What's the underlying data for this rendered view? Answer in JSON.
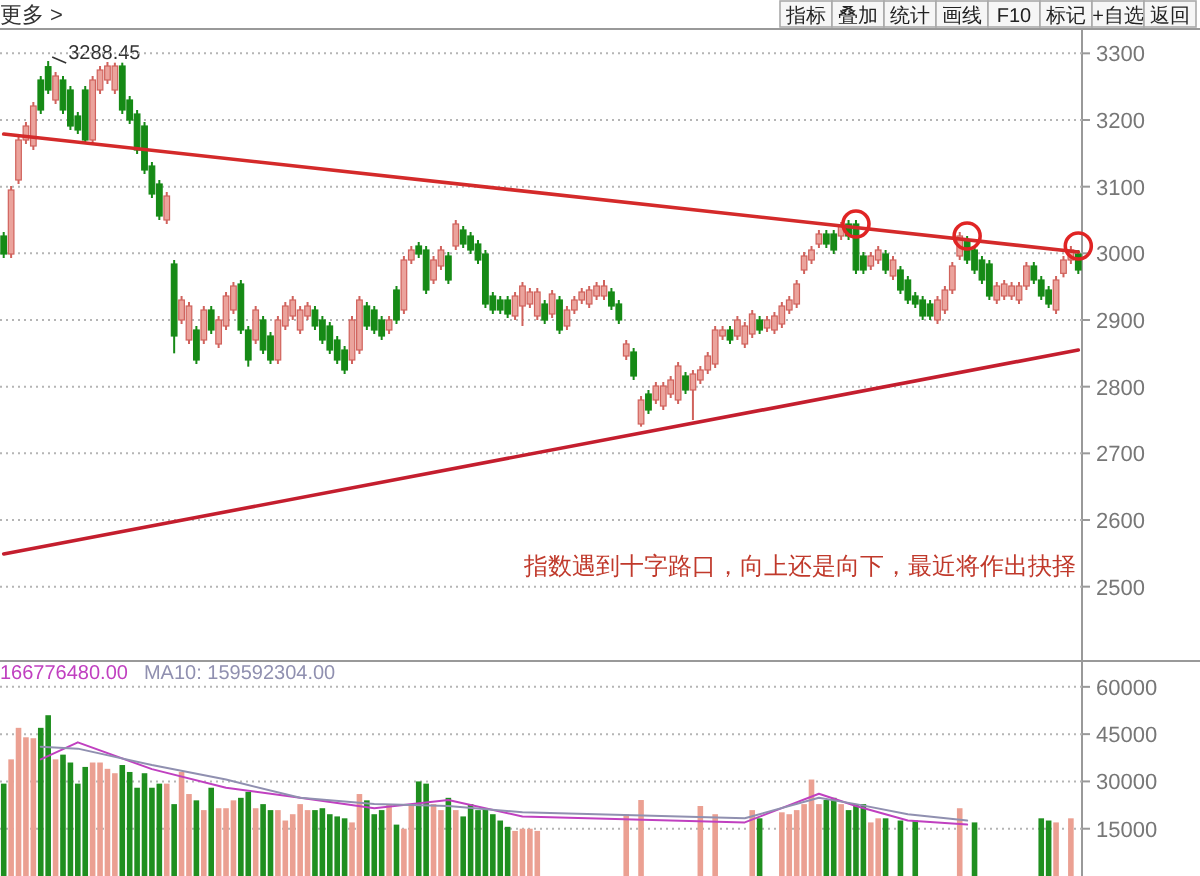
{
  "chart_data": [
    {
      "type": "candlestick",
      "categories": [
        null,
        null,
        null,
        null,
        null,
        null,
        null,
        null,
        null,
        null,
        null,
        null,
        null,
        null,
        null,
        null,
        null,
        null,
        null,
        null,
        null,
        null,
        null,
        null,
        null,
        null,
        null,
        null,
        null,
        null,
        null,
        null,
        null,
        null,
        null,
        null,
        null,
        null,
        null,
        null,
        null,
        null,
        null,
        null,
        null,
        null,
        null,
        null,
        null,
        null,
        null,
        null,
        null,
        null,
        null,
        null,
        null,
        null,
        null,
        null,
        null,
        null,
        null,
        null,
        null,
        null,
        null,
        null,
        null,
        null,
        null,
        null,
        null,
        null,
        null,
        null,
        null,
        null,
        null,
        null,
        null,
        null,
        null,
        null,
        null,
        null,
        null,
        null,
        null,
        null,
        null,
        null,
        null,
        null,
        null,
        null,
        null,
        null,
        null,
        null,
        null,
        null,
        null,
        null,
        null,
        null,
        null,
        null,
        null,
        null,
        null,
        null,
        null,
        null,
        null,
        null,
        null,
        null,
        null,
        null,
        null,
        null,
        null,
        null,
        null,
        null,
        null,
        null,
        null,
        null,
        null,
        null,
        null,
        null,
        null,
        null,
        null,
        null,
        null,
        null,
        null,
        null,
        null,
        null,
        null,
        null
      ],
      "ohlc": [
        [
          3026,
          3032,
          2993,
          2999
        ],
        [
          2999,
          3101,
          2993,
          3095
        ],
        [
          3110,
          3176,
          3104,
          3170
        ],
        [
          3170,
          3197,
          3164,
          3191
        ],
        [
          3161,
          3227,
          3155,
          3221
        ],
        [
          3260,
          3266,
          3209,
          3215
        ],
        [
          3280,
          3288.45,
          3239,
          3245
        ],
        [
          3230,
          3272,
          3224,
          3266
        ],
        [
          3260,
          3266,
          3209,
          3215
        ],
        [
          3245,
          3251,
          3185,
          3191
        ],
        [
          3206,
          3212,
          3179,
          3185
        ],
        [
          3245,
          3251,
          3164,
          3170
        ],
        [
          3170,
          3266,
          3164,
          3260
        ],
        [
          3245,
          3281,
          3239,
          3275
        ],
        [
          3260,
          3287,
          3254,
          3281
        ],
        [
          3245,
          3286,
          3239,
          3281
        ],
        [
          3281,
          3286,
          3209,
          3215
        ],
        [
          3230,
          3236,
          3194,
          3200
        ],
        [
          3209,
          3215,
          3149,
          3155
        ],
        [
          3191,
          3197,
          3119,
          3125
        ],
        [
          3131,
          3137,
          3083,
          3089
        ],
        [
          3104,
          3110,
          3050,
          3056
        ],
        [
          3050,
          3092,
          3044,
          3086
        ],
        [
          2984,
          2990,
          2850,
          2876
        ],
        [
          2900,
          2936,
          2894,
          2930
        ],
        [
          2870,
          2927,
          2864,
          2921
        ],
        [
          2885,
          2891,
          2834,
          2840
        ],
        [
          2870,
          2921,
          2864,
          2915
        ],
        [
          2915,
          2921,
          2879,
          2885
        ],
        [
          2864,
          2906,
          2858,
          2900
        ],
        [
          2891,
          2942,
          2885,
          2936
        ],
        [
          2915,
          2957,
          2909,
          2951
        ],
        [
          2954,
          2960,
          2879,
          2885
        ],
        [
          2885,
          2891,
          2830,
          2840
        ],
        [
          2870,
          2921,
          2864,
          2915
        ],
        [
          2900,
          2906,
          2849,
          2855
        ],
        [
          2876,
          2882,
          2834,
          2840
        ],
        [
          2840,
          2906,
          2834,
          2900
        ],
        [
          2891,
          2927,
          2885,
          2921
        ],
        [
          2906,
          2936,
          2900,
          2930
        ],
        [
          2885,
          2921,
          2879,
          2915
        ],
        [
          2906,
          2927,
          2900,
          2921
        ],
        [
          2915,
          2921,
          2885,
          2891
        ],
        [
          2900,
          2906,
          2864,
          2870
        ],
        [
          2891,
          2897,
          2849,
          2855
        ],
        [
          2870,
          2876,
          2834,
          2840
        ],
        [
          2855,
          2861,
          2819,
          2825
        ],
        [
          2840,
          2906,
          2834,
          2900
        ],
        [
          2855,
          2936,
          2849,
          2930
        ],
        [
          2921,
          2927,
          2885,
          2891
        ],
        [
          2915,
          2921,
          2879,
          2885
        ],
        [
          2900,
          2906,
          2870,
          2876
        ],
        [
          2885,
          2906,
          2879,
          2900
        ],
        [
          2945,
          2951,
          2894,
          2900
        ],
        [
          2915,
          2996,
          2909,
          2990
        ],
        [
          2990,
          3011,
          2984,
          3005
        ],
        [
          3011,
          3017,
          2993,
          2999
        ],
        [
          3005,
          3011,
          2939,
          2945
        ],
        [
          2960,
          2996,
          2954,
          2990
        ],
        [
          2981,
          3011,
          2975,
          3005
        ],
        [
          2996,
          3002,
          2954,
          2960
        ],
        [
          3011,
          3050,
          3005,
          3044
        ],
        [
          3035,
          3041,
          3008,
          3014
        ],
        [
          3026,
          3032,
          2999,
          3005
        ],
        [
          3014,
          3020,
          2984,
          2990
        ],
        [
          2999,
          3005,
          2918,
          2924
        ],
        [
          2936,
          2942,
          2909,
          2915
        ],
        [
          2930,
          2936,
          2909,
          2915
        ],
        [
          2930,
          2936,
          2903,
          2909
        ],
        [
          2906,
          2942,
          2900,
          2936
        ],
        [
          2921,
          2957,
          2891,
          2951
        ],
        [
          2924,
          2948,
          2918,
          2942
        ],
        [
          2906,
          2948,
          2900,
          2942
        ],
        [
          2924,
          2930,
          2894,
          2900
        ],
        [
          2909,
          2945,
          2903,
          2939
        ],
        [
          2930,
          2936,
          2879,
          2885
        ],
        [
          2891,
          2921,
          2885,
          2915
        ],
        [
          2915,
          2936,
          2909,
          2930
        ],
        [
          2930,
          2948,
          2924,
          2942
        ],
        [
          2924,
          2951,
          2918,
          2945
        ],
        [
          2936,
          2957,
          2930,
          2951
        ],
        [
          2936,
          2960,
          2930,
          2951
        ],
        [
          2942,
          2948,
          2915,
          2921
        ],
        [
          2924,
          2930,
          2894,
          2900
        ],
        [
          2846,
          2870,
          2840,
          2864
        ],
        [
          2852,
          2858,
          2810,
          2816
        ],
        [
          2744,
          2786,
          2740,
          2780
        ],
        [
          2789,
          2795,
          2759,
          2765
        ],
        [
          2780,
          2807,
          2774,
          2801
        ],
        [
          2771,
          2807,
          2765,
          2801
        ],
        [
          2789,
          2816,
          2783,
          2810
        ],
        [
          2780,
          2837,
          2774,
          2831
        ],
        [
          2816,
          2822,
          2789,
          2795
        ],
        [
          2795,
          2825,
          2750,
          2819
        ],
        [
          2810,
          2831,
          2804,
          2825
        ],
        [
          2825,
          2852,
          2819,
          2846
        ],
        [
          2834,
          2891,
          2828,
          2885
        ],
        [
          2876,
          2891,
          2870,
          2885
        ],
        [
          2885,
          2891,
          2864,
          2870
        ],
        [
          2876,
          2906,
          2870,
          2900
        ],
        [
          2864,
          2897,
          2858,
          2891
        ],
        [
          2879,
          2915,
          2873,
          2909
        ],
        [
          2900,
          2906,
          2879,
          2885
        ],
        [
          2888,
          2906,
          2882,
          2900
        ],
        [
          2885,
          2912,
          2879,
          2906
        ],
        [
          2894,
          2927,
          2888,
          2921
        ],
        [
          2915,
          2936,
          2909,
          2930
        ],
        [
          2924,
          2960,
          2918,
          2954
        ],
        [
          2975,
          3002,
          2969,
          2996
        ],
        [
          2990,
          3011,
          2984,
          3005
        ],
        [
          3014,
          3035,
          3008,
          3029
        ],
        [
          3029,
          3035,
          3008,
          3014
        ],
        [
          3029,
          3035,
          2999,
          3005
        ],
        [
          3026,
          3047,
          3020,
          3041
        ],
        [
          3044,
          3050,
          3020,
          3026
        ],
        [
          3044,
          3050,
          2969,
          2975
        ],
        [
          2996,
          3002,
          2969,
          2975
        ],
        [
          2981,
          3002,
          2975,
          2996
        ],
        [
          2990,
          3011,
          2984,
          3005
        ],
        [
          2999,
          3005,
          2969,
          2975
        ],
        [
          2966,
          2996,
          2960,
          2990
        ],
        [
          2975,
          2981,
          2939,
          2945
        ],
        [
          2960,
          2966,
          2924,
          2930
        ],
        [
          2936,
          2942,
          2918,
          2924
        ],
        [
          2930,
          2936,
          2900,
          2906
        ],
        [
          2924,
          2930,
          2900,
          2906
        ],
        [
          2900,
          2936,
          2894,
          2930
        ],
        [
          2915,
          2951,
          2909,
          2945
        ],
        [
          2945,
          2987,
          2939,
          2981
        ],
        [
          2996,
          3032,
          2990,
          3026
        ],
        [
          3020,
          3026,
          2984,
          2990
        ],
        [
          3005,
          3011,
          2969,
          2975
        ],
        [
          2990,
          2996,
          2954,
          2960
        ],
        [
          2984,
          2990,
          2930,
          2936
        ],
        [
          2930,
          2957,
          2924,
          2951
        ],
        [
          2936,
          2960,
          2930,
          2954
        ],
        [
          2936,
          2957,
          2930,
          2951
        ],
        [
          2930,
          2957,
          2924,
          2951
        ],
        [
          2951,
          2987,
          2945,
          2981
        ],
        [
          2981,
          2987,
          2954,
          2960
        ],
        [
          2960,
          2966,
          2930,
          2936
        ],
        [
          2945,
          2951,
          2918,
          2924
        ],
        [
          2915,
          2966,
          2909,
          2960
        ],
        [
          2970,
          2996,
          2964,
          2990
        ],
        [
          2990,
          3011,
          2984,
          3005
        ],
        [
          2999,
          3005,
          2969,
          2975
        ]
      ],
      "series": [
        {
          "type": "line",
          "color": "#d42a2a",
          "values": [
            3179,
            null,
            null,
            null,
            null,
            null,
            null,
            null,
            null,
            null,
            null,
            null,
            null,
            null,
            null,
            null,
            null,
            null,
            null,
            null,
            null,
            null,
            null,
            null,
            null,
            null,
            null,
            null,
            null,
            null,
            null,
            null,
            null,
            null,
            null,
            null,
            null,
            null,
            null,
            null,
            null,
            null,
            null,
            null,
            null,
            null,
            null,
            null,
            null,
            null,
            null,
            null,
            null,
            null,
            null,
            null,
            null,
            null,
            null,
            null,
            null,
            null,
            null,
            null,
            null,
            null,
            null,
            null,
            null,
            null,
            null,
            null,
            null,
            null,
            null,
            null,
            null,
            null,
            null,
            null,
            null,
            null,
            null,
            null,
            null,
            null,
            null,
            null,
            null,
            null,
            null,
            null,
            null,
            null,
            null,
            null,
            null,
            null,
            null,
            null,
            null,
            null,
            null,
            null,
            null,
            null,
            null,
            null,
            null,
            null,
            null,
            null,
            null,
            null,
            null,
            null,
            null,
            null,
            null,
            null,
            null,
            null,
            null,
            null,
            null,
            null,
            null,
            null,
            null,
            null,
            null,
            null,
            null,
            null,
            null,
            null,
            null,
            null,
            null,
            null,
            null,
            null,
            null,
            null,
            null,
            3002
          ]
        },
        {
          "type": "line",
          "color": "#c41e2e",
          "values": [
            2549,
            null,
            null,
            null,
            null,
            null,
            null,
            null,
            null,
            null,
            null,
            null,
            null,
            null,
            null,
            null,
            null,
            null,
            null,
            null,
            null,
            null,
            null,
            null,
            null,
            null,
            null,
            null,
            null,
            null,
            null,
            null,
            null,
            null,
            null,
            null,
            null,
            null,
            null,
            null,
            null,
            null,
            null,
            null,
            null,
            null,
            null,
            null,
            null,
            null,
            null,
            null,
            null,
            null,
            null,
            null,
            null,
            null,
            null,
            null,
            null,
            null,
            null,
            null,
            null,
            null,
            null,
            null,
            null,
            null,
            null,
            null,
            null,
            null,
            null,
            null,
            null,
            null,
            null,
            null,
            null,
            null,
            null,
            null,
            null,
            null,
            null,
            null,
            null,
            null,
            null,
            null,
            null,
            null,
            null,
            null,
            null,
            null,
            null,
            null,
            null,
            null,
            null,
            null,
            null,
            null,
            null,
            null,
            null,
            null,
            null,
            null,
            null,
            null,
            null,
            null,
            null,
            null,
            null,
            null,
            null,
            null,
            null,
            null,
            null,
            null,
            null,
            null,
            null,
            null,
            null,
            null,
            null,
            null,
            null,
            null,
            null,
            null,
            null,
            null,
            null,
            null,
            null,
            null,
            null,
            2855
          ]
        },
        {
          "type": "scatter",
          "marker": "circle",
          "color": "#e02424",
          "values": [
            null,
            null,
            null,
            null,
            null,
            null,
            null,
            null,
            null,
            null,
            null,
            null,
            null,
            null,
            null,
            null,
            null,
            null,
            null,
            null,
            null,
            null,
            null,
            null,
            null,
            null,
            null,
            null,
            null,
            null,
            null,
            null,
            null,
            null,
            null,
            null,
            null,
            null,
            null,
            null,
            null,
            null,
            null,
            null,
            null,
            null,
            null,
            null,
            null,
            null,
            null,
            null,
            null,
            null,
            null,
            null,
            null,
            null,
            null,
            null,
            null,
            null,
            null,
            null,
            null,
            null,
            null,
            null,
            null,
            null,
            null,
            null,
            null,
            null,
            null,
            null,
            null,
            null,
            null,
            null,
            null,
            null,
            null,
            null,
            null,
            null,
            null,
            null,
            null,
            null,
            null,
            null,
            null,
            null,
            null,
            null,
            null,
            null,
            null,
            null,
            null,
            null,
            null,
            null,
            null,
            null,
            null,
            null,
            null,
            null,
            null,
            null,
            null,
            null,
            null,
            3044,
            null,
            null,
            null,
            null,
            null,
            null,
            null,
            null,
            null,
            null,
            null,
            null,
            null,
            null,
            3026,
            null,
            null,
            null,
            null,
            null,
            null,
            null,
            null,
            null,
            null,
            null,
            null,
            null,
            null,
            3011
          ]
        }
      ],
      "ylim": [
        2390,
        3335
      ],
      "yticks": [
        2500,
        2600,
        2700,
        2800,
        2900,
        3000,
        3100,
        3200,
        3300
      ],
      "grid": "y",
      "annotations": [
        "更多 >",
        "指标",
        "叠加",
        "统计",
        "画线",
        "F10",
        "标记",
        "+自选",
        "返回",
        {
          "text": "3288.45",
          "y": 3288.45
        },
        "指数遇到十字路口，向上还是向下，最近将作出抉择"
      ]
    },
    {
      "type": "bar",
      "categories": [
        null,
        null,
        null,
        null,
        null,
        null,
        null,
        null,
        null,
        null,
        null,
        null,
        null,
        null,
        null,
        null,
        null,
        null,
        null,
        null,
        null,
        null,
        null,
        null,
        null,
        null,
        null,
        null,
        null,
        null,
        null,
        null,
        null,
        null,
        null,
        null,
        null,
        null,
        null,
        null,
        null,
        null,
        null,
        null,
        null,
        null,
        null,
        null,
        null,
        null,
        null,
        null,
        null,
        null,
        null,
        null,
        null,
        null,
        null,
        null,
        null,
        null,
        null,
        null,
        null,
        null,
        null,
        null,
        null,
        null,
        null,
        null,
        null,
        null,
        null,
        null,
        null,
        null,
        null,
        null,
        null,
        null,
        null,
        null,
        null,
        null,
        null,
        null,
        null,
        null,
        null,
        null,
        null,
        null,
        null,
        null,
        null,
        null,
        null,
        null,
        null,
        null,
        null,
        null,
        null,
        null,
        null,
        null,
        null,
        null,
        null,
        null,
        null,
        null,
        null,
        null,
        null,
        null,
        null,
        null,
        null,
        null,
        null,
        null,
        null,
        null,
        null,
        null,
        null,
        null,
        null,
        null,
        null,
        null,
        null,
        null,
        null,
        null,
        null,
        null,
        null,
        null,
        null,
        null,
        null,
        null
      ],
      "series": [
        {
          "colors": [
            "#1f8f1f",
            "#eba092",
            "#eba092",
            "#eba092",
            "#eba092",
            "#1f8f1f",
            "#1f8f1f",
            "#eba092",
            "#1f8f1f",
            "#1f8f1f",
            "#1f8f1f",
            "#1f8f1f",
            "#eba092",
            "#eba092",
            "#eba092",
            "#eba092",
            "#1f8f1f",
            "#1f8f1f",
            "#1f8f1f",
            "#1f8f1f",
            "#1f8f1f",
            "#1f8f1f",
            "#eba092",
            "#1f8f1f",
            "#eba092",
            "#eba092",
            "#1f8f1f",
            "#eba092",
            "#1f8f1f",
            "#eba092",
            "#eba092",
            "#eba092",
            "#1f8f1f",
            "#1f8f1f",
            "#eba092",
            "#1f8f1f",
            "#1f8f1f",
            "#eba092",
            "#eba092",
            "#eba092",
            "#eba092",
            "#eba092",
            "#1f8f1f",
            "#1f8f1f",
            "#1f8f1f",
            "#1f8f1f",
            "#1f8f1f",
            "#eba092",
            "#eba092",
            "#1f8f1f",
            "#1f8f1f",
            "#1f8f1f",
            "#eba092",
            "#1f8f1f",
            "#eba092",
            "#eba092",
            "#1f8f1f",
            "#1f8f1f",
            "#eba092",
            "#eba092",
            "#1f8f1f",
            "#eba092",
            "#1f8f1f",
            "#1f8f1f",
            "#1f8f1f",
            "#1f8f1f",
            "#1f8f1f",
            "#1f8f1f",
            "#1f8f1f",
            "#eba092",
            "#eba092",
            "#eba092",
            "#eba092",
            null,
            null,
            null,
            null,
            null,
            null,
            null,
            null,
            null,
            null,
            null,
            "#eba092",
            null,
            "#eba092",
            null,
            null,
            null,
            null,
            null,
            null,
            null,
            "#eba092",
            null,
            "#eba092",
            null,
            null,
            null,
            null,
            "#eba092",
            "#1f8f1f",
            null,
            null,
            "#eba092",
            "#eba092",
            "#eba092",
            "#eba092",
            "#eba092",
            "#eba092",
            "#1f8f1f",
            "#1f8f1f",
            "#eba092",
            "#1f8f1f",
            "#1f8f1f",
            "#1f8f1f",
            "#eba092",
            "#eba092",
            "#1f8f1f",
            null,
            "#1f8f1f",
            null,
            "#1f8f1f",
            null,
            null,
            null,
            null,
            null,
            "#eba092",
            null,
            "#1f8f1f",
            null,
            null,
            null,
            null,
            null,
            null,
            null,
            null,
            "#1f8f1f",
            "#1f8f1f",
            "#eba092",
            null,
            "#eba092",
            null
          ],
          "values": [
            29300,
            37000,
            47000,
            44000,
            43700,
            47000,
            51000,
            37000,
            38500,
            36000,
            29300,
            34600,
            36000,
            36000,
            34000,
            32600,
            35200,
            33000,
            28000,
            32600,
            28000,
            29300,
            29300,
            22800,
            33000,
            26000,
            24000,
            20900,
            28000,
            21500,
            21500,
            24000,
            24800,
            26700,
            21500,
            22800,
            20900,
            20900,
            17600,
            19600,
            22800,
            20900,
            20900,
            21500,
            19600,
            18900,
            18300,
            17000,
            26000,
            24000,
            19600,
            20900,
            22800,
            16300,
            15000,
            22800,
            30000,
            29300,
            22800,
            20900,
            24800,
            20900,
            18900,
            22800,
            20900,
            21500,
            19600,
            17600,
            15600,
            14300,
            15000,
            15000,
            14300,
            null,
            null,
            null,
            null,
            null,
            null,
            null,
            null,
            null,
            null,
            null,
            19600,
            null,
            24100,
            null,
            null,
            null,
            null,
            null,
            null,
            null,
            22200,
            null,
            19600,
            null,
            null,
            null,
            null,
            20900,
            18300,
            null,
            null,
            20200,
            19600,
            20900,
            22800,
            30600,
            22800,
            24100,
            24800,
            22800,
            20900,
            22800,
            22800,
            17000,
            18300,
            18300,
            null,
            17600,
            null,
            17600,
            null,
            null,
            null,
            null,
            null,
            21500,
            null,
            17000,
            null,
            null,
            null,
            null,
            null,
            null,
            null,
            null,
            18300,
            17600,
            17000,
            null,
            18300,
            null
          ]
        },
        {
          "name": "166776480.00",
          "type": "line",
          "color": "#c040c0",
          "values": [
            null,
            null,
            null,
            null,
            null,
            37000,
            null,
            null,
            null,
            null,
            42400,
            null,
            null,
            null,
            null,
            null,
            null,
            null,
            null,
            null,
            33900,
            null,
            null,
            null,
            null,
            null,
            null,
            null,
            null,
            null,
            28000,
            null,
            null,
            null,
            null,
            null,
            null,
            null,
            null,
            null,
            24800,
            null,
            null,
            null,
            null,
            null,
            null,
            null,
            null,
            null,
            21500,
            null,
            null,
            null,
            null,
            null,
            null,
            null,
            null,
            null,
            24100,
            null,
            null,
            null,
            null,
            null,
            null,
            null,
            null,
            null,
            18900,
            null,
            null,
            null,
            null,
            null,
            null,
            null,
            null,
            null,
            null,
            null,
            null,
            null,
            null,
            null,
            null,
            null,
            null,
            null,
            null,
            null,
            null,
            null,
            null,
            null,
            null,
            null,
            null,
            null,
            17000,
            null,
            null,
            null,
            null,
            null,
            null,
            null,
            null,
            null,
            26100,
            null,
            null,
            null,
            null,
            22200,
            null,
            null,
            null,
            null,
            null,
            null,
            17600,
            null,
            null,
            null,
            null,
            null,
            null,
            null,
            16300,
            null,
            null,
            null,
            null,
            null,
            null,
            null,
            null,
            null,
            null,
            null,
            null,
            null,
            null,
            null
          ]
        },
        {
          "name": "MA10: 159592304.00",
          "type": "line",
          "color": "#9090b0",
          "values": [
            null,
            null,
            null,
            null,
            null,
            41000,
            null,
            null,
            null,
            null,
            40400,
            null,
            null,
            null,
            null,
            null,
            null,
            null,
            null,
            null,
            35200,
            null,
            null,
            null,
            null,
            null,
            null,
            null,
            null,
            null,
            30600,
            null,
            null,
            null,
            null,
            null,
            null,
            null,
            null,
            null,
            24800,
            null,
            null,
            null,
            null,
            null,
            null,
            null,
            null,
            null,
            22800,
            null,
            null,
            null,
            null,
            null,
            null,
            null,
            null,
            null,
            22200,
            null,
            null,
            null,
            null,
            null,
            null,
            null,
            null,
            null,
            20200,
            null,
            null,
            null,
            null,
            null,
            null,
            null,
            null,
            null,
            null,
            null,
            null,
            null,
            null,
            null,
            null,
            null,
            null,
            null,
            null,
            null,
            null,
            null,
            null,
            null,
            null,
            null,
            null,
            null,
            18300,
            null,
            null,
            null,
            null,
            null,
            null,
            null,
            null,
            null,
            24800,
            null,
            null,
            null,
            null,
            22800,
            null,
            null,
            null,
            null,
            null,
            null,
            19600,
            null,
            null,
            null,
            null,
            null,
            null,
            null,
            17600,
            null,
            null,
            null,
            null,
            null,
            null,
            null,
            null,
            null,
            null,
            null,
            null,
            null,
            null,
            null
          ]
        }
      ],
      "ylim": [
        0,
        68200
      ],
      "yticks": [
        15000,
        30000,
        45000,
        60000
      ],
      "grid": "y",
      "legend": "top left"
    }
  ]
}
